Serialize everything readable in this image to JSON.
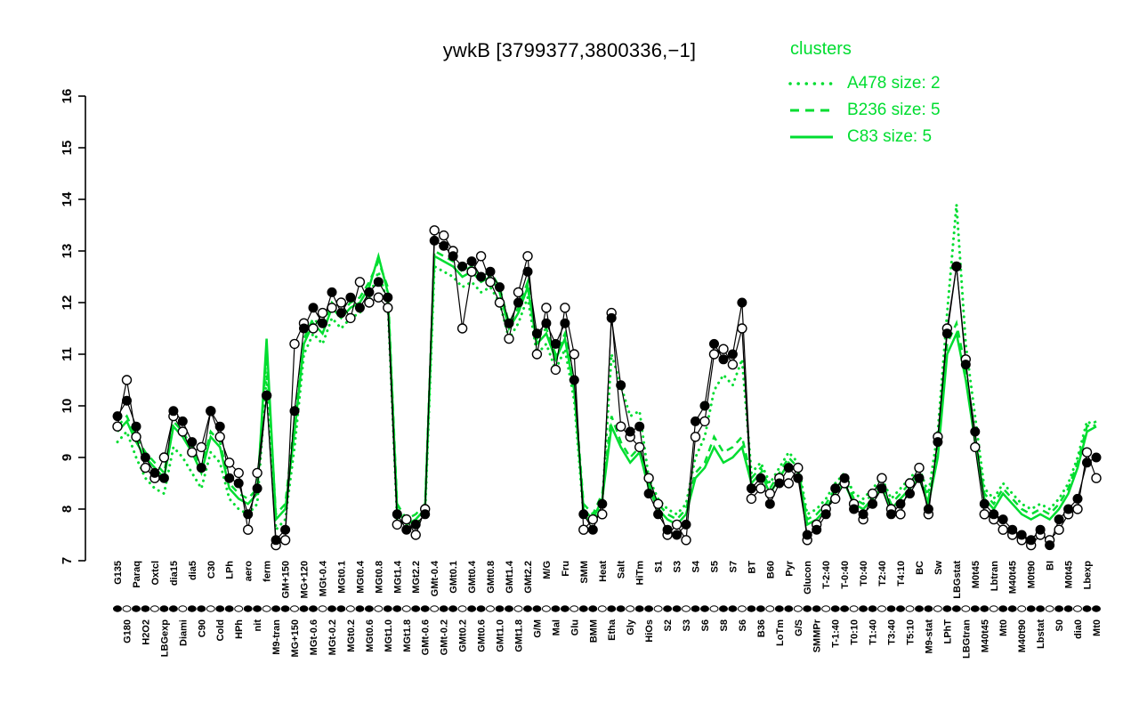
{
  "title": "ywkB [3799377,3800336,−1]",
  "colors": {
    "cluster_green": "#00DD30",
    "series_black": "#000000",
    "background": "#FFFFFF"
  },
  "legend": {
    "title": "clusters",
    "position": "top-right",
    "items": [
      {
        "name": "A478",
        "size": 2,
        "label": "A478 size: 2",
        "style": "dotted"
      },
      {
        "name": "B236",
        "size": 5,
        "label": "B236 size: 5",
        "style": "dashed"
      },
      {
        "name": "C83",
        "size": 5,
        "label": "C83 size: 5",
        "style": "solid"
      }
    ]
  },
  "chart_data": {
    "type": "line",
    "title": "ywkB [3799377,3800336,−1]",
    "xlabel": "",
    "ylabel": "",
    "grid": false,
    "legend_position": "top-right",
    "ylim": [
      7,
      16
    ],
    "yticks": [
      7,
      8,
      9,
      10,
      11,
      12,
      13,
      14,
      15,
      16
    ],
    "categories": [
      "G135",
      "G180",
      "Paraq",
      "H2O2",
      "Oxtcl",
      "LBGexp",
      "dia15",
      "Diami",
      "dia5",
      "C90",
      "C30",
      "Cold",
      "LPh",
      "HPh",
      "aero",
      "nit",
      "ferm",
      "M9-tran",
      "GM+150",
      "MG+150",
      "MG+120",
      "MGt-0.6",
      "MGt-0.4",
      "MGt-0.2",
      "MGt0.1",
      "MGt0.2",
      "MGt0.4",
      "MGt0.6",
      "MGt0.8",
      "MGt1.0",
      "MGt1.4",
      "MGt1.8",
      "MGt2.2",
      "GMt-0.6",
      "GMt-0.4",
      "GMt-0.2",
      "GMt0.1",
      "GMt0.2",
      "GMt0.4",
      "GMt0.6",
      "GMt0.8",
      "GMt1.0",
      "GMt1.4",
      "GMt1.8",
      "GMt2.2",
      "G/M",
      "M/G",
      "Mal",
      "Fru",
      "Glu",
      "SMM",
      "BMM",
      "Heat",
      "Etha",
      "Salt",
      "Gly",
      "HiTm",
      "HiOs",
      "S1",
      "S2",
      "S3",
      "S3",
      "S4",
      "S6",
      "S5",
      "S8",
      "S7",
      "S6",
      "BT",
      "B36",
      "B60",
      "LoTm",
      "Pyr",
      "G/S",
      "Glucon",
      "SMMPr",
      "T-2:40",
      "T-1:40",
      "T-0:40",
      "T0:10",
      "T0:40",
      "T1:40",
      "T2:40",
      "T3:40",
      "T4:10",
      "T5:10",
      "BC",
      "M9-stat",
      "Sw",
      "LPhT",
      "LBGstat",
      "LBGtran",
      "M0t45",
      "M40t45",
      "Lbtran",
      "Mt0",
      "M40t45",
      "M40t90",
      "M0t90",
      "Lbstat",
      "BI",
      "S0",
      "M0t45",
      "dia0",
      "Lbexp",
      "Mt0"
    ],
    "series": [
      {
        "name": "A478",
        "role": "cluster-mean",
        "color": "#00DD30",
        "line": "dotted",
        "marker": "none",
        "values": [
          9.3,
          9.5,
          9.0,
          8.6,
          8.4,
          8.3,
          9.2,
          9.0,
          8.7,
          8.4,
          9.1,
          8.9,
          8.2,
          8.0,
          7.9,
          8.1,
          10.6,
          7.6,
          7.8,
          9.2,
          11.0,
          11.4,
          11.2,
          11.7,
          11.5,
          11.7,
          11.8,
          12.1,
          12.6,
          12.0,
          7.8,
          7.6,
          7.7,
          7.9,
          12.7,
          12.6,
          12.5,
          12.3,
          12.4,
          12.2,
          12.3,
          12.0,
          11.3,
          11.6,
          12.1,
          11.0,
          11.2,
          10.7,
          11.1,
          10.1,
          7.9,
          7.7,
          8.1,
          11.0,
          10.4,
          9.8,
          9.9,
          8.6,
          8.2,
          8.0,
          7.9,
          8.1,
          9.0,
          9.4,
          10.3,
          10.6,
          10.4,
          10.9,
          8.7,
          8.9,
          8.5,
          8.8,
          9.1,
          8.9,
          7.9,
          8.0,
          8.2,
          8.5,
          8.7,
          8.3,
          8.2,
          8.4,
          8.6,
          8.2,
          8.4,
          8.6,
          8.8,
          8.3,
          9.5,
          11.8,
          13.9,
          11.2,
          9.8,
          8.4,
          8.2,
          8.5,
          8.3,
          8.1,
          8.0,
          8.1,
          8.0,
          8.2,
          8.5,
          9.0,
          9.7,
          9.6
        ]
      },
      {
        "name": "B236",
        "role": "cluster-mean",
        "color": "#00DD30",
        "line": "dashed",
        "marker": "none",
        "values": [
          9.6,
          9.8,
          9.4,
          9.1,
          8.9,
          8.7,
          9.7,
          9.5,
          9.2,
          8.8,
          9.5,
          9.3,
          8.5,
          8.3,
          8.2,
          8.4,
          11.0,
          7.9,
          8.1,
          9.7,
          11.3,
          11.7,
          11.5,
          12.0,
          11.8,
          12.0,
          12.1,
          12.4,
          12.8,
          12.3,
          8.1,
          7.8,
          7.9,
          8.1,
          13.0,
          12.9,
          12.8,
          12.6,
          12.7,
          12.5,
          12.6,
          12.3,
          11.6,
          11.9,
          12.4,
          11.3,
          11.5,
          11.0,
          11.4,
          10.4,
          8.1,
          7.9,
          8.3,
          9.8,
          9.3,
          9.0,
          9.2,
          8.5,
          8.1,
          7.9,
          7.8,
          8.0,
          8.7,
          8.9,
          9.4,
          9.1,
          9.2,
          9.4,
          8.6,
          8.8,
          8.4,
          8.7,
          9.0,
          8.8,
          7.8,
          7.9,
          8.1,
          8.4,
          8.6,
          8.2,
          8.1,
          8.3,
          8.5,
          8.1,
          8.3,
          8.5,
          8.7,
          8.2,
          9.1,
          11.2,
          11.6,
          10.7,
          9.4,
          8.3,
          8.1,
          8.4,
          8.2,
          8.0,
          7.9,
          8.0,
          7.9,
          8.1,
          8.4,
          8.9,
          9.6,
          9.7
        ]
      },
      {
        "name": "C83",
        "role": "cluster-mean",
        "color": "#00DD30",
        "line": "solid",
        "marker": "none",
        "values": [
          9.5,
          9.7,
          9.3,
          9.0,
          8.8,
          8.6,
          9.6,
          9.4,
          9.1,
          8.7,
          9.4,
          9.2,
          8.4,
          8.2,
          8.1,
          8.3,
          11.3,
          7.8,
          8.0,
          9.5,
          11.2,
          11.6,
          11.4,
          11.9,
          11.7,
          11.9,
          12.0,
          12.3,
          12.9,
          12.2,
          8.0,
          7.7,
          7.8,
          8.0,
          12.9,
          12.8,
          12.7,
          12.5,
          12.6,
          12.4,
          12.5,
          12.2,
          11.5,
          11.8,
          12.3,
          11.2,
          11.4,
          10.9,
          11.3,
          10.3,
          8.0,
          7.8,
          8.2,
          9.6,
          9.2,
          8.9,
          9.1,
          8.4,
          8.0,
          7.8,
          7.7,
          7.9,
          8.6,
          8.8,
          9.2,
          8.9,
          9.0,
          9.2,
          8.5,
          8.7,
          8.3,
          8.6,
          8.9,
          8.7,
          7.7,
          7.8,
          8.0,
          8.3,
          8.5,
          8.1,
          8.0,
          8.2,
          8.4,
          8.0,
          8.2,
          8.4,
          8.6,
          8.1,
          9.0,
          11.0,
          11.4,
          10.5,
          9.3,
          8.2,
          8.0,
          8.3,
          8.1,
          7.9,
          7.8,
          7.9,
          7.8,
          8.0,
          8.3,
          8.8,
          9.5,
          9.6
        ]
      },
      {
        "name": "gene-open",
        "role": "gene-profile",
        "color": "#000000",
        "line": "solid-thin",
        "marker": "open-circle",
        "values": [
          9.6,
          10.5,
          9.4,
          8.8,
          8.6,
          9.0,
          9.8,
          9.5,
          9.1,
          9.2,
          9.9,
          9.4,
          8.9,
          8.7,
          7.6,
          8.7,
          10.2,
          7.3,
          7.4,
          11.2,
          11.6,
          11.5,
          11.8,
          11.9,
          12.0,
          11.7,
          12.4,
          12.0,
          12.1,
          11.9,
          7.7,
          7.8,
          7.5,
          8.0,
          13.4,
          13.3,
          13.0,
          11.5,
          12.6,
          12.9,
          12.4,
          12.0,
          11.3,
          12.2,
          12.9,
          11.0,
          11.9,
          10.7,
          11.9,
          11.0,
          7.6,
          7.8,
          7.9,
          11.8,
          9.6,
          9.4,
          9.2,
          8.6,
          8.1,
          7.5,
          7.7,
          7.4,
          9.4,
          9.7,
          11.0,
          11.1,
          10.8,
          11.5,
          8.2,
          8.4,
          8.3,
          8.6,
          8.5,
          8.8,
          7.4,
          7.7,
          8.0,
          8.2,
          8.5,
          8.1,
          7.8,
          8.3,
          8.6,
          8.0,
          7.9,
          8.5,
          8.8,
          7.9,
          9.4,
          11.5,
          12.7,
          10.9,
          9.2,
          7.9,
          7.8,
          7.6,
          7.5,
          7.4,
          7.3,
          7.5,
          7.4,
          7.6,
          7.9,
          8.0,
          9.1,
          8.6
        ]
      },
      {
        "name": "gene-filled",
        "role": "gene-profile",
        "color": "#000000",
        "line": "solid-thin",
        "marker": "filled-circle",
        "values": [
          9.8,
          10.1,
          9.6,
          9.0,
          8.7,
          8.6,
          9.9,
          9.7,
          9.3,
          8.8,
          9.9,
          9.6,
          8.6,
          8.5,
          7.9,
          8.4,
          10.2,
          7.4,
          7.6,
          9.9,
          11.5,
          11.9,
          11.6,
          12.2,
          11.8,
          12.1,
          11.9,
          12.2,
          12.4,
          12.1,
          7.9,
          7.6,
          7.7,
          7.9,
          13.2,
          13.1,
          12.9,
          12.7,
          12.8,
          12.5,
          12.6,
          12.3,
          11.6,
          12.0,
          12.6,
          11.4,
          11.6,
          11.2,
          11.6,
          10.5,
          7.9,
          7.6,
          8.1,
          11.7,
          10.4,
          9.5,
          9.6,
          8.3,
          7.9,
          7.6,
          7.5,
          7.7,
          9.7,
          10.0,
          11.2,
          10.9,
          11.0,
          12.0,
          8.4,
          8.6,
          8.1,
          8.5,
          8.8,
          8.6,
          7.5,
          7.6,
          7.9,
          8.4,
          8.6,
          8.0,
          7.9,
          8.1,
          8.4,
          7.9,
          8.1,
          8.3,
          8.6,
          8.0,
          9.3,
          11.4,
          12.7,
          10.8,
          9.5,
          8.1,
          7.9,
          7.8,
          7.6,
          7.5,
          7.4,
          7.6,
          7.3,
          7.8,
          8.0,
          8.2,
          8.9,
          9.0
        ]
      }
    ]
  }
}
